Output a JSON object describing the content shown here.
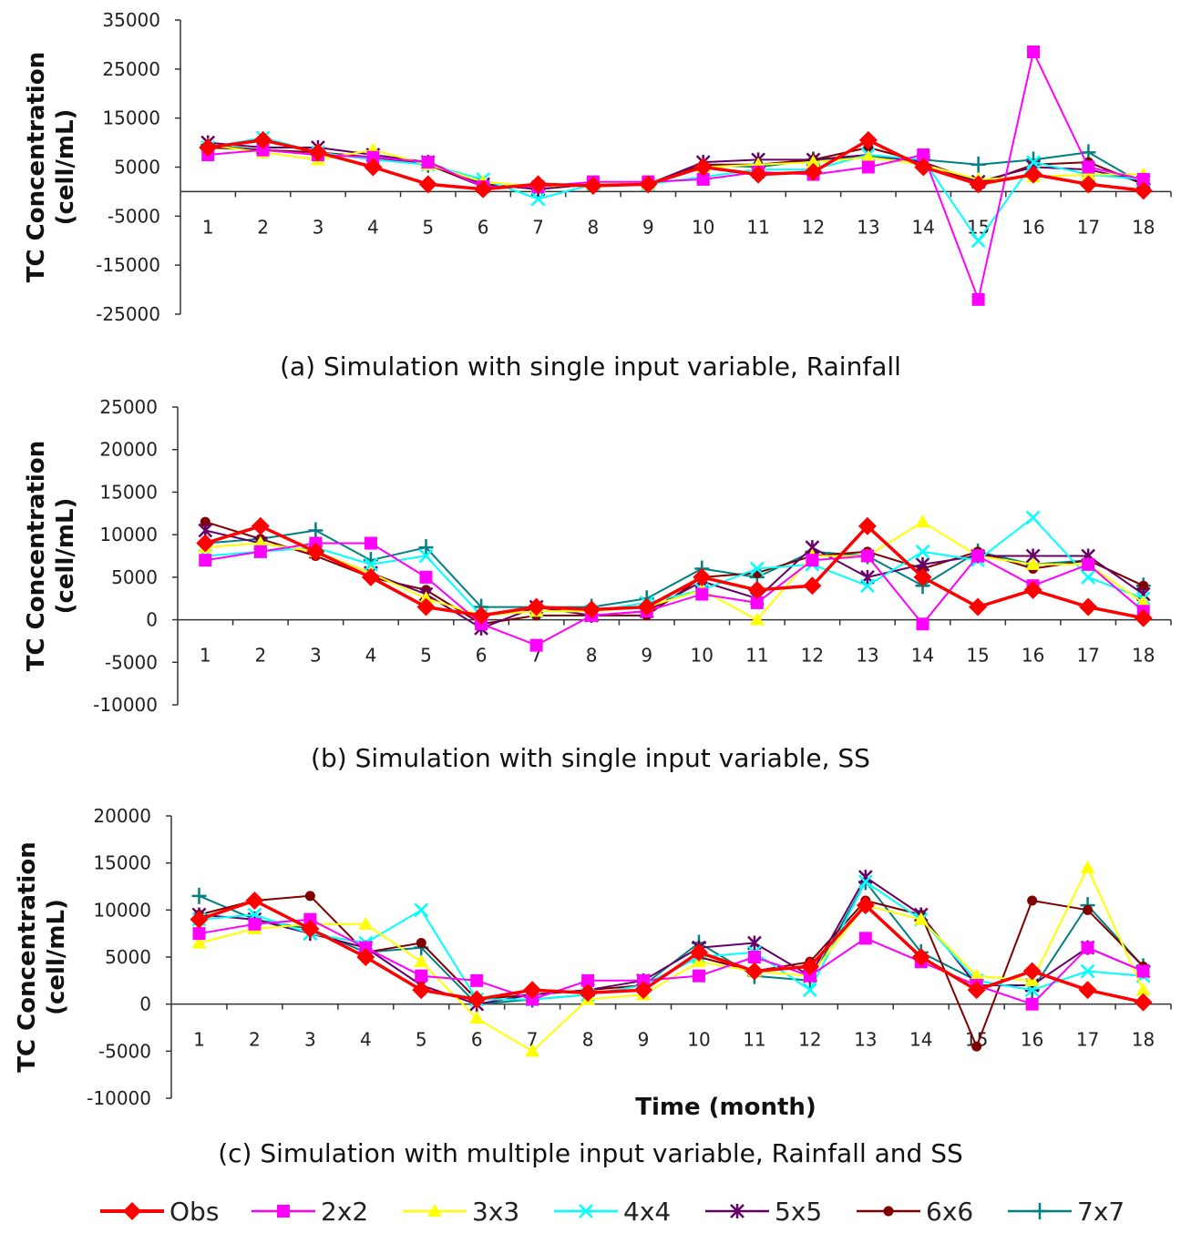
{
  "chart_data": [
    {
      "type": "line",
      "caption": "(a) Simulation with single input variable, Rainfall",
      "ylabel": "TC Concentration\n(cell/mL)",
      "xlabel": "",
      "ylim": [
        -25000,
        35000
      ],
      "yticks": [
        35000,
        25000,
        15000,
        5000,
        -5000,
        -15000,
        -25000
      ],
      "categories": [
        "1",
        "2",
        "3",
        "4",
        "5",
        "6",
        "7",
        "8",
        "9",
        "10",
        "11",
        "12",
        "13",
        "14",
        "15",
        "16",
        "17",
        "18"
      ],
      "series": [
        {
          "name": "Obs",
          "values": [
            9000,
            10500,
            8000,
            5000,
            1500,
            500,
            1500,
            1200,
            1500,
            5000,
            3500,
            4000,
            10500,
            5000,
            1500,
            3500,
            1500,
            200
          ]
        },
        {
          "name": "2x2",
          "values": [
            7500,
            8500,
            7500,
            7000,
            6000,
            1000,
            1000,
            2000,
            2000,
            2500,
            4000,
            3500,
            5000,
            7500,
            -22000,
            28500,
            5000,
            2500
          ]
        },
        {
          "name": "3x3",
          "values": [
            9500,
            8000,
            6500,
            8500,
            5500,
            2000,
            1000,
            1500,
            1500,
            5000,
            5500,
            6000,
            7000,
            5500,
            2500,
            3000,
            3500,
            3500
          ]
        },
        {
          "name": "4x4",
          "values": [
            9000,
            11000,
            8000,
            6500,
            5500,
            2500,
            -1500,
            1500,
            1500,
            3000,
            4500,
            4500,
            7500,
            6500,
            -10000,
            6000,
            3500,
            2500
          ]
        },
        {
          "name": "5x5",
          "values": [
            10000,
            9000,
            9000,
            7500,
            6000,
            1500,
            500,
            1500,
            1500,
            6000,
            6500,
            6500,
            7500,
            6000,
            2000,
            5000,
            4500,
            2000
          ]
        },
        {
          "name": "6x6",
          "values": [
            9000,
            8500,
            8000,
            7000,
            5500,
            1000,
            1000,
            1500,
            1500,
            5500,
            5500,
            6500,
            9000,
            6000,
            1500,
            5500,
            6000,
            1500
          ]
        },
        {
          "name": "7x7",
          "values": [
            9500,
            8500,
            7500,
            7000,
            5500,
            1500,
            500,
            1500,
            1500,
            5500,
            5000,
            6500,
            7000,
            6500,
            5500,
            6500,
            8000,
            1500
          ]
        }
      ]
    },
    {
      "type": "line",
      "caption": "(b) Simulation with single input variable, SS",
      "ylabel": "TC Concentration\n(cell/mL)",
      "xlabel": "",
      "ylim": [
        -10000,
        25000
      ],
      "yticks": [
        25000,
        20000,
        15000,
        10000,
        5000,
        0,
        -5000,
        -10000
      ],
      "categories": [
        "1",
        "2",
        "3",
        "4",
        "5",
        "6",
        "7",
        "8",
        "9",
        "10",
        "11",
        "12",
        "13",
        "14",
        "15",
        "16",
        "17",
        "18"
      ],
      "series": [
        {
          "name": "Obs",
          "values": [
            9000,
            11000,
            8000,
            5000,
            1500,
            500,
            1500,
            1200,
            1500,
            5000,
            3500,
            4000,
            11000,
            5000,
            1500,
            3500,
            1500,
            200
          ]
        },
        {
          "name": "2x2",
          "values": [
            7000,
            8000,
            9000,
            9000,
            5000,
            -500,
            -3000,
            500,
            1000,
            3000,
            2000,
            7000,
            7500,
            -500,
            7500,
            4000,
            6500,
            1000
          ]
        },
        {
          "name": "3x3",
          "values": [
            8500,
            9000,
            8000,
            5500,
            2500,
            500,
            1000,
            1000,
            1500,
            3500,
            0,
            7500,
            7500,
            11500,
            7500,
            6500,
            6500,
            2000
          ]
        },
        {
          "name": "4x4",
          "values": [
            7500,
            8000,
            8500,
            6500,
            7500,
            500,
            1000,
            1000,
            2000,
            3500,
            6000,
            6500,
            4000,
            8000,
            7000,
            12000,
            5000,
            2500
          ]
        },
        {
          "name": "5x5",
          "values": [
            10500,
            9000,
            8000,
            5500,
            3000,
            -1000,
            1500,
            500,
            1000,
            4500,
            2500,
            8500,
            5000,
            6500,
            7500,
            7500,
            7500,
            3000
          ]
        },
        {
          "name": "6x6",
          "values": [
            11500,
            9500,
            7500,
            5000,
            3500,
            -500,
            500,
            500,
            500,
            5000,
            5500,
            7500,
            8000,
            6000,
            8000,
            6000,
            7000,
            4000
          ]
        },
        {
          "name": "7x7",
          "values": [
            9000,
            9500,
            10500,
            7000,
            8500,
            1500,
            1500,
            1500,
            2500,
            6000,
            5000,
            8000,
            7500,
            4000,
            8000,
            6500,
            7000,
            4000
          ]
        }
      ]
    },
    {
      "type": "line",
      "caption": "(c) Simulation with multiple input variable, Rainfall and SS",
      "ylabel": "TC Concentration\n(cell/mL)",
      "xlabel": "Time (month)",
      "ylim": [
        -10000,
        20000
      ],
      "yticks": [
        20000,
        15000,
        10000,
        5000,
        0,
        -5000,
        -10000
      ],
      "categories": [
        "1",
        "2",
        "3",
        "4",
        "5",
        "6",
        "7",
        "8",
        "9",
        "10",
        "11",
        "12",
        "13",
        "14",
        "15",
        "16",
        "17",
        "18"
      ],
      "series": [
        {
          "name": "Obs",
          "values": [
            9000,
            11000,
            8000,
            5000,
            1500,
            500,
            1500,
            1200,
            1500,
            5500,
            3500,
            4000,
            10500,
            5000,
            1500,
            3500,
            1500,
            200
          ]
        },
        {
          "name": "2x2",
          "values": [
            7500,
            8500,
            9000,
            6000,
            3000,
            2500,
            500,
            2500,
            2500,
            3000,
            5000,
            3000,
            7000,
            4500,
            2000,
            0,
            6000,
            3500
          ]
        },
        {
          "name": "3x3",
          "values": [
            6500,
            8000,
            8500,
            8500,
            4500,
            -1500,
            -5000,
            500,
            1000,
            4500,
            3500,
            3000,
            10500,
            9000,
            3000,
            2500,
            14500,
            1500
          ]
        },
        {
          "name": "4x4",
          "values": [
            9000,
            9500,
            7500,
            6500,
            10000,
            500,
            500,
            1000,
            2000,
            5000,
            5500,
            1500,
            13000,
            9000,
            2500,
            1500,
            3500,
            3000
          ]
        },
        {
          "name": "5x5",
          "values": [
            9500,
            9000,
            7500,
            6000,
            2000,
            0,
            1000,
            1500,
            2500,
            6000,
            6500,
            3000,
            13500,
            9500,
            2000,
            2000,
            6000,
            3500
          ]
        },
        {
          "name": "6x6",
          "values": [
            9500,
            11000,
            11500,
            5500,
            6500,
            500,
            1000,
            1500,
            2000,
            5000,
            3500,
            4500,
            11000,
            9500,
            -4500,
            11000,
            10000,
            4000
          ]
        },
        {
          "name": "7x7",
          "values": [
            11500,
            9000,
            8000,
            5500,
            6000,
            0,
            500,
            1000,
            2000,
            6500,
            3000,
            2500,
            13000,
            5500,
            2500,
            1500,
            10500,
            4000
          ]
        }
      ]
    }
  ],
  "legend": [
    {
      "name": "Obs",
      "color": "#ff0000",
      "marker": "diamond"
    },
    {
      "name": "2x2",
      "color": "#ff00ff",
      "marker": "square"
    },
    {
      "name": "3x3",
      "color": "#ffff00",
      "marker": "triangle"
    },
    {
      "name": "4x4",
      "color": "#00ffff",
      "marker": "x"
    },
    {
      "name": "5x5",
      "color": "#660066",
      "marker": "star"
    },
    {
      "name": "6x6",
      "color": "#800000",
      "marker": "circle"
    },
    {
      "name": "7x7",
      "color": "#008080",
      "marker": "plus"
    }
  ]
}
